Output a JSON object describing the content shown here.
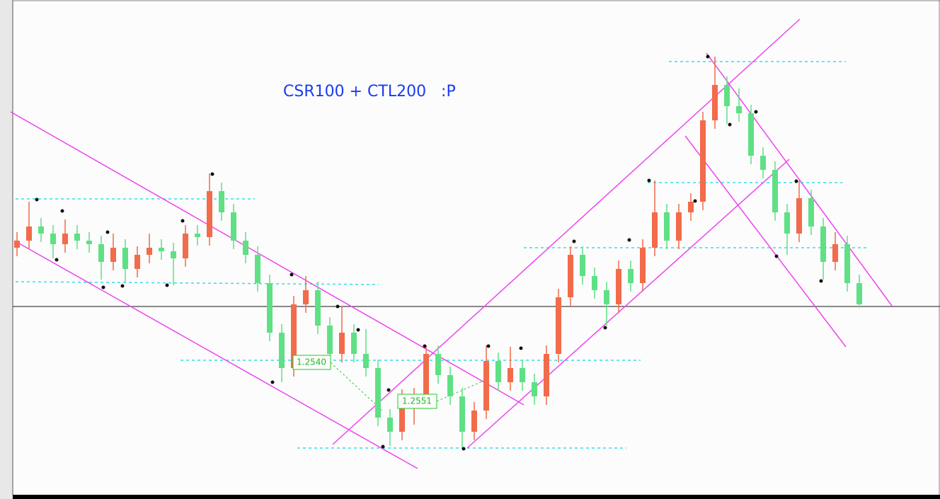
{
  "chart_data": {
    "type": "candlestick",
    "title": "CSR100 + CTL200   :P",
    "annotations": [
      "1.2540",
      "1.2551"
    ],
    "up_color": "#f26b4a",
    "down_color": "#5fe085",
    "ylim": [
      1.23,
      1.3
    ],
    "candles": [
      [
        1.265,
        1.2672,
        1.2638,
        1.266
      ],
      [
        1.266,
        1.2715,
        1.2648,
        1.268
      ],
      [
        1.268,
        1.2692,
        1.2658,
        1.267
      ],
      [
        1.267,
        1.2682,
        1.2635,
        1.2655
      ],
      [
        1.2655,
        1.269,
        1.2643,
        1.267
      ],
      [
        1.267,
        1.2682,
        1.2648,
        1.266
      ],
      [
        1.266,
        1.2672,
        1.2643,
        1.2655
      ],
      [
        1.2655,
        1.2667,
        1.2605,
        1.263
      ],
      [
        1.263,
        1.267,
        1.2618,
        1.265
      ],
      [
        1.265,
        1.2662,
        1.26,
        1.262
      ],
      [
        1.262,
        1.2652,
        1.2608,
        1.264
      ],
      [
        1.264,
        1.267,
        1.2628,
        1.265
      ],
      [
        1.265,
        1.2662,
        1.2633,
        1.2645
      ],
      [
        1.2645,
        1.2657,
        1.2597,
        1.2635
      ],
      [
        1.2635,
        1.2682,
        1.2623,
        1.267
      ],
      [
        1.267,
        1.2682,
        1.2653,
        1.2665
      ],
      [
        1.2665,
        1.2755,
        1.2653,
        1.273
      ],
      [
        1.273,
        1.2742,
        1.2688,
        1.27
      ],
      [
        1.27,
        1.2712,
        1.2648,
        1.266
      ],
      [
        1.266,
        1.2672,
        1.2628,
        1.264
      ],
      [
        1.264,
        1.2652,
        1.2588,
        1.26
      ],
      [
        1.26,
        1.2612,
        1.2518,
        1.253
      ],
      [
        1.253,
        1.2542,
        1.246,
        1.248
      ],
      [
        1.248,
        1.2582,
        1.2468,
        1.257
      ],
      [
        1.257,
        1.261,
        1.2558,
        1.259
      ],
      [
        1.259,
        1.2602,
        1.2528,
        1.254
      ],
      [
        1.254,
        1.2552,
        1.2488,
        1.25
      ],
      [
        1.25,
        1.2567,
        1.2488,
        1.253
      ],
      [
        1.253,
        1.2542,
        1.2488,
        1.25
      ],
      [
        1.25,
        1.2535,
        1.2468,
        1.248
      ],
      [
        1.248,
        1.2492,
        1.2398,
        1.241
      ],
      [
        1.241,
        1.2422,
        1.237,
        1.239
      ],
      [
        1.239,
        1.245,
        1.2378,
        1.243
      ],
      [
        1.243,
        1.2452,
        1.24,
        1.244
      ],
      [
        1.244,
        1.2512,
        1.2428,
        1.25
      ],
      [
        1.25,
        1.2512,
        1.2458,
        1.247
      ],
      [
        1.247,
        1.2482,
        1.2428,
        1.244
      ],
      [
        1.244,
        1.2452,
        1.2367,
        1.239
      ],
      [
        1.239,
        1.2432,
        1.2378,
        1.242
      ],
      [
        1.242,
        1.2512,
        1.2408,
        1.249
      ],
      [
        1.249,
        1.2502,
        1.2448,
        1.246
      ],
      [
        1.246,
        1.251,
        1.2448,
        1.248
      ],
      [
        1.248,
        1.2492,
        1.2448,
        1.246
      ],
      [
        1.246,
        1.2472,
        1.2428,
        1.244
      ],
      [
        1.244,
        1.2512,
        1.2428,
        1.25
      ],
      [
        1.25,
        1.2592,
        1.2488,
        1.258
      ],
      [
        1.258,
        1.2652,
        1.2568,
        1.264
      ],
      [
        1.264,
        1.2652,
        1.2598,
        1.261
      ],
      [
        1.261,
        1.2622,
        1.2578,
        1.259
      ],
      [
        1.259,
        1.2602,
        1.254,
        1.257
      ],
      [
        1.257,
        1.2632,
        1.2558,
        1.262
      ],
      [
        1.262,
        1.2632,
        1.2588,
        1.26
      ],
      [
        1.26,
        1.2662,
        1.2588,
        1.265
      ],
      [
        1.265,
        1.2745,
        1.2638,
        1.27
      ],
      [
        1.27,
        1.2712,
        1.2648,
        1.266
      ],
      [
        1.266,
        1.2712,
        1.2648,
        1.27
      ],
      [
        1.27,
        1.2727,
        1.2688,
        1.2715
      ],
      [
        1.2715,
        1.2842,
        1.2703,
        1.283
      ],
      [
        1.283,
        1.292,
        1.2818,
        1.288
      ],
      [
        1.288,
        1.2892,
        1.2825,
        1.285
      ],
      [
        1.285,
        1.2875,
        1.2828,
        1.284
      ],
      [
        1.284,
        1.2852,
        1.2768,
        1.278
      ],
      [
        1.278,
        1.2792,
        1.2748,
        1.276
      ],
      [
        1.276,
        1.2772,
        1.2688,
        1.27
      ],
      [
        1.27,
        1.2712,
        1.264,
        1.267
      ],
      [
        1.267,
        1.2745,
        1.2658,
        1.272
      ],
      [
        1.272,
        1.2732,
        1.2668,
        1.268
      ],
      [
        1.268,
        1.2692,
        1.2605,
        1.263
      ],
      [
        1.263,
        1.2672,
        1.2618,
        1.2655
      ],
      [
        1.2655,
        1.2667,
        1.2588,
        1.26
      ],
      [
        1.26,
        1.2612,
        1.2565,
        1.257
      ]
    ]
  }
}
